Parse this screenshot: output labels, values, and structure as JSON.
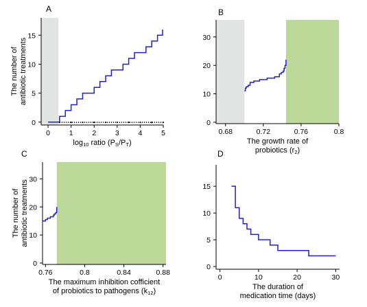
{
  "chart_data": [
    {
      "panel": "A",
      "type": "line",
      "ylabel": [
        "The number of",
        "antibiotic treatments"
      ],
      "xlabel_prefix": "log",
      "xlabel_sub": "10",
      "xlabel_mid": " ratio (P",
      "xlabel_sub2": "S",
      "xlabel_mid2": "/P",
      "xlabel_sub3": "T",
      "xlabel_end": ")",
      "xlim": [
        -0.3,
        5
      ],
      "ylim": [
        -0.5,
        18
      ],
      "xticks": [
        0,
        1,
        2,
        3,
        4,
        5
      ],
      "xtick_labels": [
        "0",
        "1",
        "2",
        "3",
        "4",
        "5"
      ],
      "yticks": [
        0,
        5,
        10,
        15
      ],
      "ytick_labels": [
        "0",
        "5",
        "10",
        "15"
      ],
      "shaded": [
        {
          "x0": -0.3,
          "x1": 0.45,
          "color": "#e2e3e3"
        }
      ],
      "series": [
        {
          "color": "#1f1fd6",
          "step": true,
          "x": [
            0.0,
            0.45,
            0.5,
            0.75,
            1.0,
            1.25,
            1.5,
            1.75,
            2.0,
            2.25,
            2.5,
            2.75,
            3.0,
            3.25,
            3.5,
            3.75,
            4.0,
            4.25,
            4.5,
            4.75,
            4.97
          ],
          "y": [
            0,
            0,
            1,
            2,
            3,
            4,
            5,
            5,
            6,
            7,
            8,
            9,
            9,
            10,
            11,
            12,
            12,
            13,
            14,
            15,
            16
          ]
        },
        {
          "color": "#000000",
          "dotted": true,
          "x": [
            0.5,
            1.0,
            1.5,
            2.0,
            2.5,
            3.0,
            3.5,
            4.0,
            4.5,
            5.0
          ],
          "y": [
            -0.05,
            -0.05,
            -0.05,
            -0.05,
            -0.05,
            -0.05,
            -0.05,
            -0.05,
            -0.05,
            -0.05
          ]
        }
      ]
    },
    {
      "panel": "B",
      "type": "line",
      "xlabel_lines": [
        "The  growth rate of",
        "probiotics (r"
      ],
      "xlabel_sub": "2",
      "xlabel_end": ")",
      "xlim": [
        0.67,
        0.8
      ],
      "ylim": [
        -0.5,
        36
      ],
      "xticks": [
        0.68,
        0.72,
        0.76,
        0.8
      ],
      "xtick_labels": [
        "0.68",
        "0.72",
        "0.76",
        "0.8"
      ],
      "yticks": [
        0,
        10,
        20,
        30
      ],
      "ytick_labels": [
        "0",
        "10",
        "20",
        "30"
      ],
      "shaded": [
        {
          "x0": 0.67,
          "x1": 0.7,
          "color": "#e2e3e3"
        },
        {
          "x0": 0.744,
          "x1": 0.8,
          "color": "#bcd99a"
        }
      ],
      "series": [
        {
          "color": "#1f1fd6",
          "step": true,
          "x": [
            0.7,
            0.701,
            0.702,
            0.704,
            0.706,
            0.71,
            0.716,
            0.724,
            0.732,
            0.737,
            0.739,
            0.741,
            0.742,
            0.743,
            0.744
          ],
          "y": [
            11,
            12,
            12.5,
            13,
            14,
            14.5,
            15,
            15.5,
            16,
            17,
            17.5,
            18,
            19,
            20,
            22
          ]
        }
      ]
    },
    {
      "panel": "C",
      "type": "line",
      "ylabel": [
        "The number of",
        "antibiotic treatments"
      ],
      "xlabel_lines": [
        "The maximum inhibition cofficient",
        "of probiotics to pathogens (k"
      ],
      "xlabel_sub": "12",
      "xlabel_end": ")",
      "xlim": [
        0.757,
        0.883
      ],
      "ylim": [
        -0.5,
        36
      ],
      "xticks": [
        0.76,
        0.8,
        0.84,
        0.88
      ],
      "xtick_labels": [
        "0.76",
        "0.8",
        "0.84",
        "0.88"
      ],
      "yticks": [
        0,
        10,
        20,
        30
      ],
      "ytick_labels": [
        "0",
        "10",
        "20",
        "30"
      ],
      "shaded": [
        {
          "x0": 0.7715,
          "x1": 0.883,
          "color": "#bcd99a"
        }
      ],
      "series": [
        {
          "color": "#1f1fd6",
          "step": true,
          "x": [
            0.757,
            0.76,
            0.762,
            0.765,
            0.768,
            0.769,
            0.7705,
            0.7715
          ],
          "y": [
            15,
            15.5,
            16,
            16.5,
            17,
            17.5,
            18,
            20
          ]
        }
      ]
    },
    {
      "panel": "D",
      "type": "line",
      "xlabel_lines": [
        "The duration of",
        "medication time  (days)"
      ],
      "xlim": [
        -1,
        31
      ],
      "ylim": [
        -0.5,
        19
      ],
      "xticks": [
        0,
        10,
        20,
        30
      ],
      "xtick_labels": [
        "0",
        "10",
        "20",
        "30"
      ],
      "yticks": [
        0,
        5,
        10,
        15
      ],
      "ytick_labels": [
        "0",
        "5",
        "10",
        "15"
      ],
      "shaded": [],
      "series": [
        {
          "color": "#1f1fd6",
          "step": true,
          "x": [
            3,
            4,
            5,
            6,
            7,
            8,
            10,
            13,
            15,
            19,
            23,
            30
          ],
          "y": [
            15,
            11,
            9,
            8,
            7,
            6,
            5,
            4,
            3,
            3,
            2,
            2
          ]
        }
      ]
    }
  ]
}
